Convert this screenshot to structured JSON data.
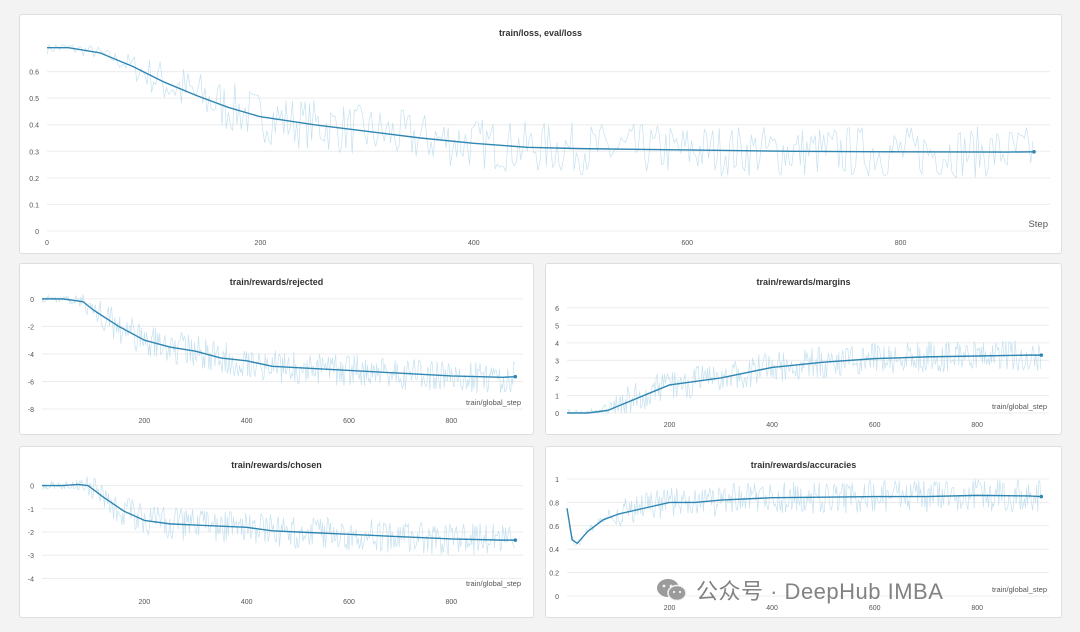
{
  "chart_data": [
    {
      "type": "line",
      "title": "train/loss, eval/loss",
      "xlabel": "Step",
      "xlim": [
        0,
        940
      ],
      "ylim": [
        0,
        0.7
      ],
      "x_ticks": [
        0,
        200,
        400,
        600,
        800
      ],
      "y_ticks": [
        0,
        0.1,
        0.2,
        0.3,
        0.4,
        0.5,
        0.6
      ],
      "grid": true,
      "series": [
        {
          "x": [
            0,
            20,
            50,
            80,
            110,
            140,
            170,
            200,
            250,
            300,
            350,
            400,
            450,
            500,
            600,
            700,
            800,
            900,
            925
          ],
          "values": [
            0.69,
            0.69,
            0.67,
            0.62,
            0.56,
            0.51,
            0.465,
            0.43,
            0.4,
            0.375,
            0.35,
            0.33,
            0.315,
            0.31,
            0.305,
            0.3,
            0.298,
            0.297,
            0.298
          ]
        }
      ]
    },
    {
      "type": "line",
      "title": "train/rewards/rejected",
      "xlabel": "train/global_step",
      "xlim": [
        0,
        940
      ],
      "ylim": [
        -8,
        0.5
      ],
      "x_ticks": [
        200,
        400,
        600,
        800
      ],
      "y_ticks": [
        -8,
        -6,
        -4,
        -2,
        0
      ],
      "grid": true,
      "series": [
        {
          "x": [
            0,
            40,
            80,
            100,
            150,
            200,
            250,
            300,
            350,
            400,
            450,
            500,
            600,
            700,
            800,
            900,
            925
          ],
          "values": [
            0,
            0,
            -0.2,
            -0.8,
            -2,
            -3,
            -3.5,
            -3.8,
            -4.3,
            -4.5,
            -4.9,
            -5.0,
            -5.2,
            -5.4,
            -5.6,
            -5.7,
            -5.65
          ]
        }
      ]
    },
    {
      "type": "line",
      "title": "train/rewards/margins",
      "xlabel": "train/global_step",
      "xlim": [
        0,
        940
      ],
      "ylim": [
        0,
        6.5
      ],
      "x_ticks": [
        200,
        400,
        600,
        800
      ],
      "y_ticks": [
        0,
        1,
        2,
        3,
        4,
        5,
        6
      ],
      "grid": true,
      "series": [
        {
          "x": [
            0,
            40,
            80,
            100,
            150,
            200,
            250,
            300,
            350,
            400,
            450,
            500,
            600,
            700,
            800,
            900,
            925
          ],
          "values": [
            0,
            0,
            0.15,
            0.4,
            1.0,
            1.6,
            1.8,
            2.0,
            2.3,
            2.6,
            2.75,
            2.9,
            3.1,
            3.2,
            3.25,
            3.3,
            3.3
          ]
        }
      ]
    },
    {
      "type": "line",
      "title": "train/rewards/chosen",
      "xlabel": "train/global_step",
      "xlim": [
        0,
        940
      ],
      "ylim": [
        -4.5,
        0.5
      ],
      "x_ticks": [
        200,
        400,
        600,
        800
      ],
      "y_ticks": [
        -4,
        -3,
        -2,
        -1,
        0
      ],
      "grid": true,
      "series": [
        {
          "x": [
            0,
            40,
            70,
            90,
            120,
            160,
            200,
            250,
            300,
            350,
            400,
            450,
            500,
            600,
            700,
            800,
            900,
            925
          ],
          "values": [
            0,
            0,
            0.05,
            0,
            -0.5,
            -1.1,
            -1.5,
            -1.65,
            -1.7,
            -1.75,
            -1.8,
            -1.95,
            -2.0,
            -2.1,
            -2.2,
            -2.3,
            -2.35,
            -2.35
          ]
        }
      ]
    },
    {
      "type": "line",
      "title": "train/rewards/accuracies",
      "xlabel": "train/global_step",
      "xlim": [
        0,
        940
      ],
      "ylim": [
        0,
        1
      ],
      "x_ticks": [
        200,
        400,
        600,
        800
      ],
      "y_ticks": [
        0,
        0.2,
        0.4,
        0.6,
        0.8,
        1
      ],
      "grid": true,
      "series": [
        {
          "x": [
            0,
            10,
            20,
            40,
            70,
            100,
            150,
            200,
            250,
            300,
            400,
            500,
            600,
            700,
            800,
            900,
            925
          ],
          "values": [
            0.75,
            0.48,
            0.45,
            0.55,
            0.65,
            0.7,
            0.75,
            0.8,
            0.8,
            0.82,
            0.84,
            0.845,
            0.85,
            0.85,
            0.86,
            0.855,
            0.85
          ]
        }
      ]
    }
  ],
  "colors": {
    "line": "#2f86b2",
    "raw": "#b3d7ea",
    "grid": "#ececec",
    "tick": "#555555"
  },
  "watermark": {
    "icon": "wechat-icon",
    "text": "公众号 · DeepHub IMBA"
  }
}
